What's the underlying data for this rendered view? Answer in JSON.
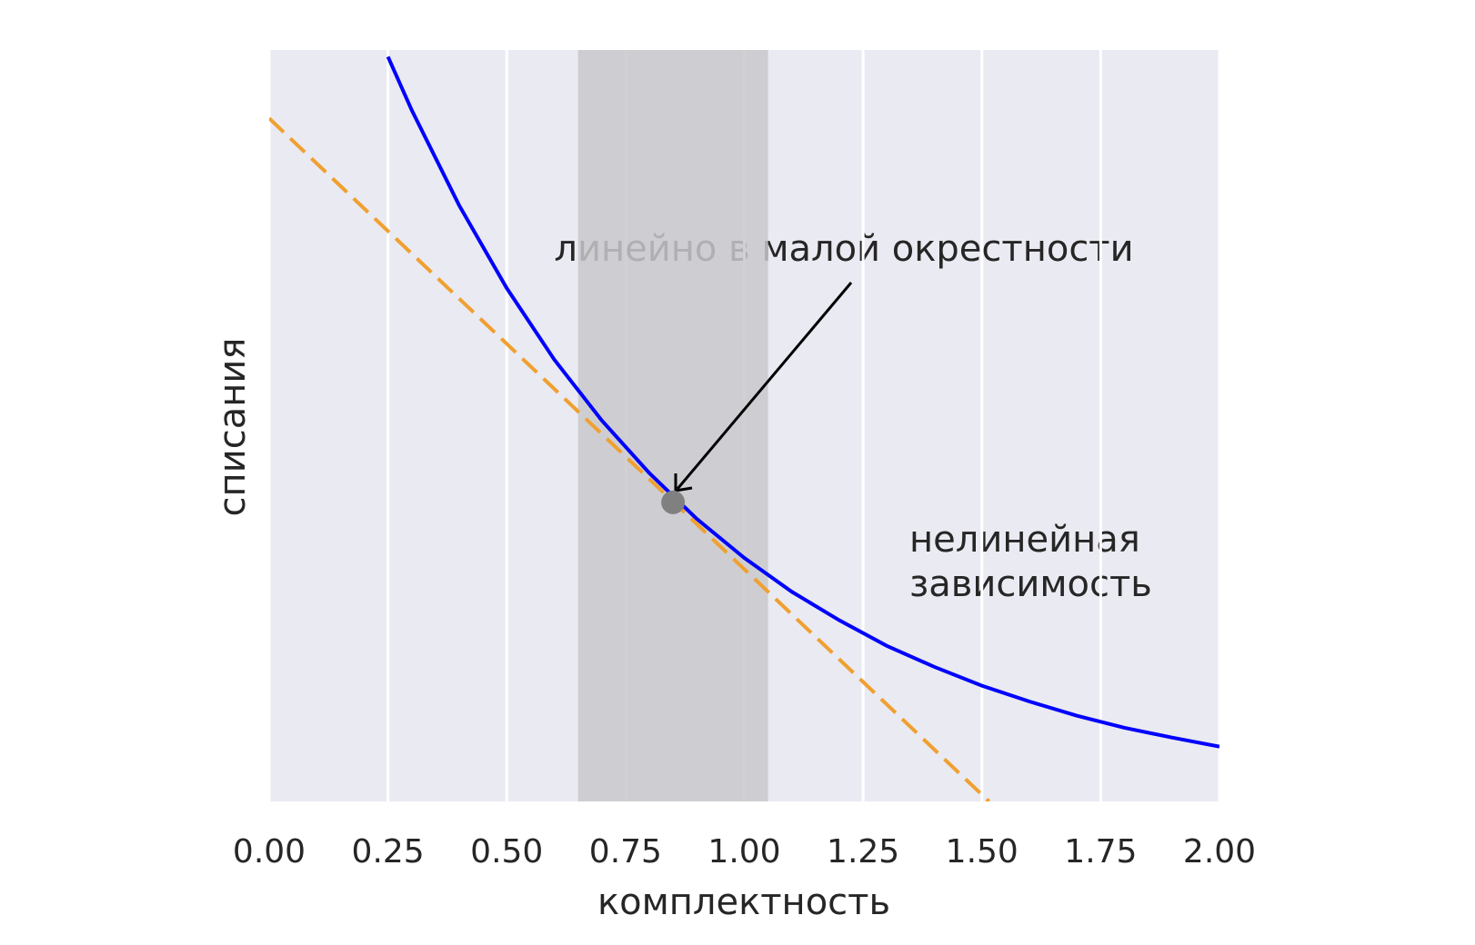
{
  "chart_data": {
    "type": "line",
    "x_label": "комплектность",
    "y_label": "списания",
    "xlim": [
      0,
      2
    ],
    "ylim": [
      0,
      1
    ],
    "xticks": [
      {
        "value": 0,
        "label": "0.00"
      },
      {
        "value": 0.25,
        "label": "0.25"
      },
      {
        "value": 0.5,
        "label": "0.50"
      },
      {
        "value": 0.75,
        "label": "0.75"
      },
      {
        "value": 1,
        "label": "1.00"
      },
      {
        "value": 1.25,
        "label": "1.25"
      },
      {
        "value": 1.5,
        "label": "1.50"
      },
      {
        "value": 1.75,
        "label": "1.75"
      },
      {
        "value": 2,
        "label": "2.00"
      }
    ],
    "grid": true,
    "background": "#eaeaf2",
    "shaded_span": {
      "x": [
        0.65,
        1.05
      ],
      "color": "#c9c9cd"
    },
    "series": [
      {
        "x": [
          0.25,
          0.3,
          0.4,
          0.5,
          0.6,
          0.7,
          0.8,
          0.9,
          1.0,
          1.1,
          1.2,
          1.3,
          1.4,
          1.5,
          1.6,
          1.7,
          1.8,
          1.9,
          2.0
        ],
        "values": [
          0.991,
          0.92,
          0.793,
          0.683,
          0.588,
          0.507,
          0.437,
          0.376,
          0.324,
          0.279,
          0.241,
          0.207,
          0.179,
          0.154,
          0.133,
          0.114,
          0.098,
          0.085,
          0.073
        ],
        "color": "#0000ff",
        "style": "solid"
      },
      {
        "x": [
          0,
          1.515
        ],
        "values": [
          0.909,
          0
        ],
        "color": "#f0a030",
        "style": "dashed"
      }
    ],
    "point": {
      "x": 0.85,
      "value": 0.398,
      "color": "#808080"
    },
    "annotations": [
      "линейно в малой окрестности",
      "нелинейная",
      "зависимость"
    ]
  }
}
